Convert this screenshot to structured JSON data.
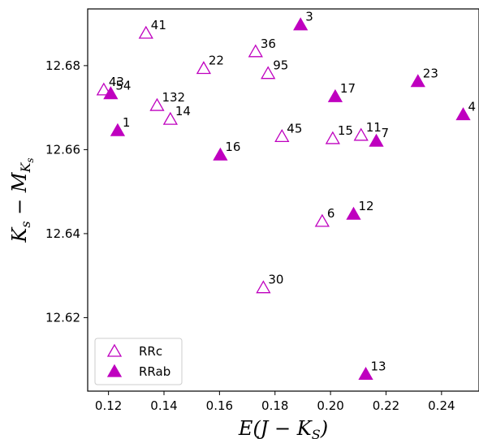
{
  "chart_data": {
    "type": "scatter",
    "xlabel": "E(J − K_S)",
    "ylabel": "K_s − M_{K_s}",
    "xlim": [
      0.1125,
      0.2535
    ],
    "ylim": [
      12.6025,
      12.6935
    ],
    "xticks": [
      0.12,
      0.14,
      0.16,
      0.18,
      0.2,
      0.22,
      0.24
    ],
    "xtick_labels": [
      "0.12",
      "0.14",
      "0.16",
      "0.18",
      "0.20",
      "0.22",
      "0.24"
    ],
    "yticks": [
      12.62,
      12.64,
      12.66,
      12.68
    ],
    "ytick_labels": [
      "12.62",
      "12.64",
      "12.66",
      "12.68"
    ],
    "grid": false,
    "legend_position": "bottom-left",
    "color": "#bf00bf",
    "series": [
      {
        "name": "RRc",
        "marker": "open-triangle",
        "points": [
          {
            "label": "41",
            "x": 0.1335,
            "y": 12.6877
          },
          {
            "label": "36",
            "x": 0.173,
            "y": 12.6833
          },
          {
            "label": "22",
            "x": 0.1543,
            "y": 12.6793
          },
          {
            "label": "95",
            "x": 0.1775,
            "y": 12.6781
          },
          {
            "label": "43",
            "x": 0.1183,
            "y": 12.6742
          },
          {
            "label": "132",
            "x": 0.1375,
            "y": 12.6705
          },
          {
            "label": "14",
            "x": 0.1423,
            "y": 12.6672
          },
          {
            "label": "45",
            "x": 0.1825,
            "y": 12.6631
          },
          {
            "label": "15",
            "x": 0.2008,
            "y": 12.6626
          },
          {
            "label": "11",
            "x": 0.211,
            "y": 12.6634
          },
          {
            "label": "6",
            "x": 0.197,
            "y": 12.6429
          },
          {
            "label": "30",
            "x": 0.1758,
            "y": 12.6271
          }
        ]
      },
      {
        "name": "RRab",
        "marker": "filled-triangle",
        "points": [
          {
            "label": "3",
            "x": 0.1892,
            "y": 12.6897
          },
          {
            "label": "54",
            "x": 0.1208,
            "y": 12.6733
          },
          {
            "label": "23",
            "x": 0.2315,
            "y": 12.6762
          },
          {
            "label": "17",
            "x": 0.2017,
            "y": 12.6726
          },
          {
            "label": "4",
            "x": 0.2478,
            "y": 12.6683
          },
          {
            "label": "1",
            "x": 0.1233,
            "y": 12.6645
          },
          {
            "label": "7",
            "x": 0.2165,
            "y": 12.662
          },
          {
            "label": "16",
            "x": 0.1603,
            "y": 12.6587
          },
          {
            "label": "12",
            "x": 0.2083,
            "y": 12.6446
          },
          {
            "label": "13",
            "x": 0.2127,
            "y": 12.6065
          }
        ]
      }
    ]
  }
}
